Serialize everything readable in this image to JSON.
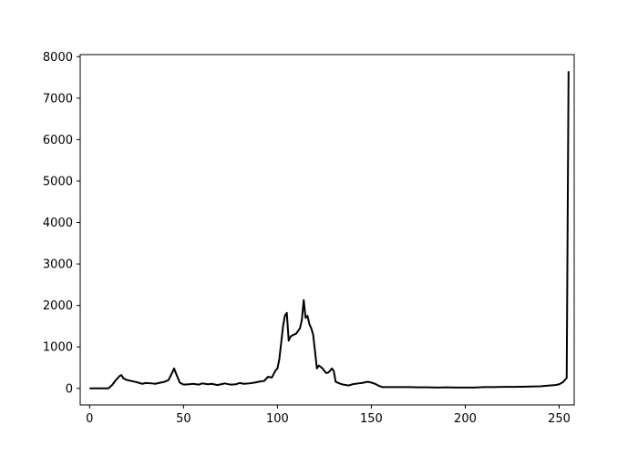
{
  "chart_data": {
    "type": "line",
    "title": "",
    "xlabel": "",
    "ylabel": "",
    "xlim": [
      -5,
      258
    ],
    "ylim": [
      -400,
      8050
    ],
    "xticks": [
      0,
      50,
      100,
      150,
      200,
      250
    ],
    "yticks": [
      0,
      1000,
      2000,
      3000,
      4000,
      5000,
      6000,
      7000,
      8000
    ],
    "grid": false,
    "series": [
      {
        "color": "#000000",
        "x": [
          0,
          5,
          10,
          12,
          14,
          16,
          17,
          18,
          20,
          22,
          25,
          28,
          30,
          33,
          35,
          38,
          40,
          42,
          44,
          45,
          46,
          48,
          50,
          53,
          55,
          58,
          60,
          63,
          65,
          68,
          70,
          72,
          75,
          78,
          80,
          82,
          85,
          88,
          90,
          93,
          95,
          97,
          99,
          100,
          101,
          102,
          103,
          104,
          105,
          106,
          107,
          108,
          110,
          112,
          113,
          114,
          115,
          116,
          117,
          118,
          119,
          120,
          121,
          122,
          123,
          124,
          125,
          126,
          127,
          128,
          129,
          130,
          131,
          132,
          133,
          135,
          138,
          140,
          143,
          145,
          148,
          150,
          152,
          154,
          156,
          160,
          165,
          170,
          175,
          180,
          185,
          190,
          195,
          200,
          205,
          210,
          215,
          220,
          225,
          230,
          235,
          240,
          245,
          248,
          250,
          252,
          254,
          255
        ],
        "y": [
          0,
          0,
          0,
          80,
          200,
          300,
          320,
          240,
          200,
          180,
          150,
          110,
          130,
          120,
          110,
          140,
          160,
          200,
          380,
          480,
          360,
          140,
          90,
          100,
          110,
          90,
          120,
          100,
          110,
          80,
          100,
          120,
          90,
          100,
          130,
          110,
          120,
          140,
          160,
          180,
          280,
          260,
          430,
          480,
          700,
          1100,
          1500,
          1760,
          1820,
          1150,
          1250,
          1280,
          1320,
          1450,
          1650,
          2130,
          1700,
          1750,
          1550,
          1450,
          1300,
          900,
          480,
          550,
          520,
          480,
          420,
          370,
          380,
          420,
          480,
          420,
          160,
          140,
          120,
          90,
          70,
          100,
          120,
          130,
          160,
          140,
          110,
          60,
          30,
          30,
          30,
          30,
          25,
          25,
          20,
          25,
          20,
          20,
          20,
          30,
          30,
          35,
          35,
          40,
          45,
          50,
          70,
          80,
          100,
          150,
          250,
          7650
        ]
      }
    ]
  }
}
